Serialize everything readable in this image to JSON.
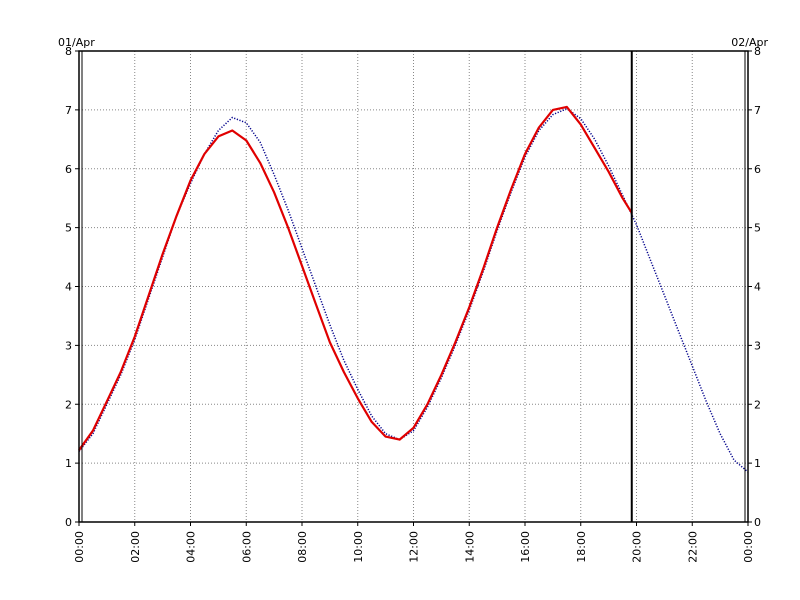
{
  "chart_data": {
    "type": "line",
    "date_left": "01/Apr",
    "date_right": "02/Apr",
    "x_unit": "hours",
    "xlim": [
      0,
      24
    ],
    "ylim": [
      0,
      8
    ],
    "y_ticks": [
      0,
      1,
      2,
      3,
      4,
      5,
      6,
      7,
      8
    ],
    "x_ticks": [
      {
        "value": 0,
        "label": "00:00"
      },
      {
        "value": 2,
        "label": "02:00"
      },
      {
        "value": 4,
        "label": "04:00"
      },
      {
        "value": 6,
        "label": "06:00"
      },
      {
        "value": 8,
        "label": "08:00"
      },
      {
        "value": 10,
        "label": "10:00"
      },
      {
        "value": 12,
        "label": "12:00"
      },
      {
        "value": 14,
        "label": "14:00"
      },
      {
        "value": 16,
        "label": "16:00"
      },
      {
        "value": 18,
        "label": "18:00"
      },
      {
        "value": 20,
        "label": "20:00"
      },
      {
        "value": 22,
        "label": "22:00"
      },
      {
        "value": 24,
        "label": "00:00"
      }
    ],
    "grid": true,
    "current_time": 19.83,
    "series": [
      {
        "color": "#00008b",
        "style": "dotted",
        "points": [
          [
            0.0,
            1.2
          ],
          [
            0.5,
            1.5
          ],
          [
            1.0,
            2.0
          ],
          [
            1.5,
            2.5
          ],
          [
            2.0,
            3.1
          ],
          [
            2.5,
            3.8
          ],
          [
            3.0,
            4.5
          ],
          [
            3.5,
            5.2
          ],
          [
            4.0,
            5.75
          ],
          [
            4.5,
            6.25
          ],
          [
            5.0,
            6.65
          ],
          [
            5.5,
            6.87
          ],
          [
            6.0,
            6.78
          ],
          [
            6.5,
            6.45
          ],
          [
            7.0,
            5.9
          ],
          [
            7.5,
            5.3
          ],
          [
            8.0,
            4.65
          ],
          [
            8.5,
            4.0
          ],
          [
            9.0,
            3.35
          ],
          [
            9.5,
            2.75
          ],
          [
            10.0,
            2.25
          ],
          [
            10.5,
            1.8
          ],
          [
            11.0,
            1.5
          ],
          [
            11.5,
            1.4
          ],
          [
            12.0,
            1.55
          ],
          [
            12.5,
            1.95
          ],
          [
            13.0,
            2.45
          ],
          [
            13.5,
            3.0
          ],
          [
            14.0,
            3.6
          ],
          [
            14.5,
            4.25
          ],
          [
            15.0,
            4.95
          ],
          [
            15.5,
            5.6
          ],
          [
            16.0,
            6.2
          ],
          [
            16.5,
            6.65
          ],
          [
            17.0,
            6.92
          ],
          [
            17.5,
            7.02
          ],
          [
            18.0,
            6.85
          ],
          [
            18.5,
            6.5
          ],
          [
            19.0,
            6.05
          ],
          [
            19.5,
            5.55
          ],
          [
            20.0,
            5.05
          ],
          [
            20.5,
            4.45
          ],
          [
            21.0,
            3.85
          ],
          [
            21.5,
            3.25
          ],
          [
            22.0,
            2.65
          ],
          [
            22.5,
            2.05
          ],
          [
            23.0,
            1.5
          ],
          [
            23.5,
            1.05
          ],
          [
            24.0,
            0.85
          ]
        ]
      },
      {
        "color": "#e00000",
        "style": "solid",
        "points": [
          [
            0.0,
            1.22
          ],
          [
            0.5,
            1.55
          ],
          [
            1.0,
            2.05
          ],
          [
            1.5,
            2.55
          ],
          [
            2.0,
            3.15
          ],
          [
            2.5,
            3.85
          ],
          [
            3.0,
            4.55
          ],
          [
            3.5,
            5.2
          ],
          [
            4.0,
            5.8
          ],
          [
            4.5,
            6.25
          ],
          [
            5.0,
            6.55
          ],
          [
            5.5,
            6.65
          ],
          [
            6.0,
            6.48
          ],
          [
            6.5,
            6.1
          ],
          [
            7.0,
            5.6
          ],
          [
            7.5,
            5.0
          ],
          [
            8.0,
            4.35
          ],
          [
            8.5,
            3.7
          ],
          [
            9.0,
            3.05
          ],
          [
            9.5,
            2.55
          ],
          [
            10.0,
            2.1
          ],
          [
            10.5,
            1.7
          ],
          [
            11.0,
            1.45
          ],
          [
            11.5,
            1.4
          ],
          [
            12.0,
            1.6
          ],
          [
            12.5,
            2.0
          ],
          [
            13.0,
            2.5
          ],
          [
            13.5,
            3.05
          ],
          [
            14.0,
            3.65
          ],
          [
            14.5,
            4.3
          ],
          [
            15.0,
            5.0
          ],
          [
            15.5,
            5.65
          ],
          [
            16.0,
            6.25
          ],
          [
            16.5,
            6.7
          ],
          [
            17.0,
            7.0
          ],
          [
            17.5,
            7.05
          ],
          [
            18.0,
            6.75
          ],
          [
            18.5,
            6.35
          ],
          [
            19.0,
            5.95
          ],
          [
            19.5,
            5.5
          ],
          [
            19.83,
            5.25
          ]
        ]
      }
    ]
  }
}
